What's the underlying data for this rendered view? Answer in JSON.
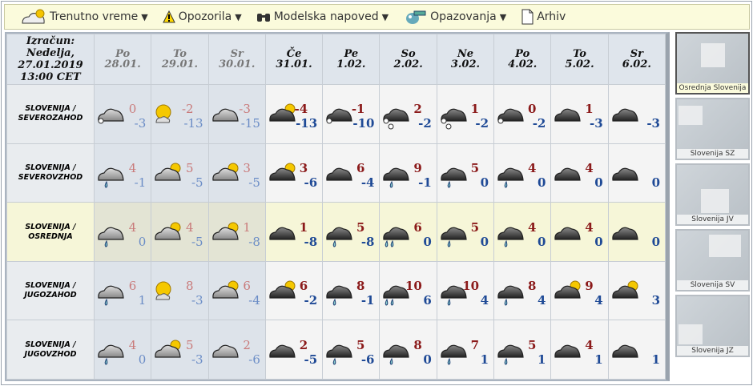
{
  "toolbar": [
    {
      "label": "Trenutno vreme",
      "icon": "cloud-sun-icon",
      "dropdown": true
    },
    {
      "label": "Opozorila",
      "icon": "warning-icon",
      "dropdown": true
    },
    {
      "label": "Modelska napoved",
      "icon": "binoculars-icon",
      "dropdown": true
    },
    {
      "label": "Opazovanja",
      "icon": "observer-icon",
      "dropdown": true
    },
    {
      "label": "Arhiv",
      "icon": "document-icon",
      "dropdown": false
    }
  ],
  "header": {
    "calc": [
      "Izračun:",
      "Nedelja,",
      "27.01.2019",
      "13:00 CET"
    ],
    "days": [
      {
        "day": "Po",
        "date": "28.01.",
        "past": true
      },
      {
        "day": "To",
        "date": "29.01.",
        "past": true
      },
      {
        "day": "Sr",
        "date": "30.01.",
        "past": true
      },
      {
        "day": "Če",
        "date": "31.01."
      },
      {
        "day": "Pe",
        "date": "1.02."
      },
      {
        "day": "So",
        "date": "2.02."
      },
      {
        "day": "Ne",
        "date": "3.02."
      },
      {
        "day": "Po",
        "date": "4.02."
      },
      {
        "day": "To",
        "date": "5.02."
      },
      {
        "day": "Sr",
        "date": "6.02."
      }
    ]
  },
  "rows": [
    {
      "region": [
        "SLOVENIJA /",
        "SEVEROZAHOD"
      ],
      "cells": [
        {
          "icon": "cloud-snow",
          "hi": "0",
          "lo": "-3"
        },
        {
          "icon": "sun-cloud",
          "hi": "-2",
          "lo": "-13"
        },
        {
          "icon": "cloud",
          "hi": "-3",
          "lo": "-15"
        },
        {
          "icon": "cloud-sun",
          "hi": "-4",
          "lo": "-13"
        },
        {
          "icon": "cloud-snow",
          "hi": "-1",
          "lo": "-10"
        },
        {
          "icon": "cloud-snow-heavy",
          "hi": "2",
          "lo": "-2"
        },
        {
          "icon": "cloud-snow-heavy",
          "hi": "1",
          "lo": "-2"
        },
        {
          "icon": "cloud-snow",
          "hi": "0",
          "lo": "-2"
        },
        {
          "icon": "cloud",
          "hi": "1",
          "lo": "-3"
        },
        {
          "icon": "cloud",
          "hi": "",
          "lo": "-3"
        }
      ]
    },
    {
      "region": [
        "SLOVENIJA /",
        "SEVEROVZHOD"
      ],
      "cells": [
        {
          "icon": "cloud-rain",
          "hi": "4",
          "lo": "-1"
        },
        {
          "icon": "cloud-sun",
          "hi": "5",
          "lo": "-5"
        },
        {
          "icon": "cloud-sun",
          "hi": "3",
          "lo": "-5"
        },
        {
          "icon": "cloud-sun",
          "hi": "3",
          "lo": "-6"
        },
        {
          "icon": "cloud",
          "hi": "6",
          "lo": "-4"
        },
        {
          "icon": "cloud-rain",
          "hi": "9",
          "lo": "-1"
        },
        {
          "icon": "cloud-rain",
          "hi": "5",
          "lo": "0"
        },
        {
          "icon": "cloud-rain",
          "hi": "4",
          "lo": "0"
        },
        {
          "icon": "cloud",
          "hi": "4",
          "lo": "0"
        },
        {
          "icon": "cloud",
          "hi": "",
          "lo": "0"
        }
      ]
    },
    {
      "region": [
        "SLOVENIJA /",
        "OSREDNJA"
      ],
      "highlight": true,
      "cells": [
        {
          "icon": "cloud-rain",
          "hi": "4",
          "lo": "0"
        },
        {
          "icon": "cloud-sun",
          "hi": "4",
          "lo": "-5"
        },
        {
          "icon": "cloud-sun",
          "hi": "1",
          "lo": "-8"
        },
        {
          "icon": "cloud",
          "hi": "1",
          "lo": "-8"
        },
        {
          "icon": "cloud-rain",
          "hi": "5",
          "lo": "-8"
        },
        {
          "icon": "cloud-rain-heavy",
          "hi": "6",
          "lo": "0"
        },
        {
          "icon": "cloud-rain",
          "hi": "5",
          "lo": "0"
        },
        {
          "icon": "cloud-rain",
          "hi": "4",
          "lo": "0"
        },
        {
          "icon": "cloud",
          "hi": "4",
          "lo": "0"
        },
        {
          "icon": "cloud",
          "hi": "",
          "lo": "0"
        }
      ]
    },
    {
      "region": [
        "SLOVENIJA /",
        "JUGOZAHOD"
      ],
      "cells": [
        {
          "icon": "cloud-rain",
          "hi": "6",
          "lo": "1"
        },
        {
          "icon": "sun-cloud",
          "hi": "8",
          "lo": "-3"
        },
        {
          "icon": "cloud-sun",
          "hi": "6",
          "lo": "-4"
        },
        {
          "icon": "cloud-sun",
          "hi": "6",
          "lo": "-2"
        },
        {
          "icon": "cloud-rain",
          "hi": "8",
          "lo": "-1"
        },
        {
          "icon": "cloud-rain-heavy",
          "hi": "10",
          "lo": "6"
        },
        {
          "icon": "cloud-rain",
          "hi": "10",
          "lo": "4"
        },
        {
          "icon": "cloud-rain",
          "hi": "8",
          "lo": "4"
        },
        {
          "icon": "cloud-sun",
          "hi": "9",
          "lo": "4"
        },
        {
          "icon": "cloud-sun",
          "hi": "",
          "lo": "3"
        }
      ]
    },
    {
      "region": [
        "SLOVENIJA /",
        "JUGOVZHOD"
      ],
      "cells": [
        {
          "icon": "cloud-rain",
          "hi": "4",
          "lo": "0"
        },
        {
          "icon": "cloud-sun",
          "hi": "5",
          "lo": "-3"
        },
        {
          "icon": "cloud",
          "hi": "2",
          "lo": "-6"
        },
        {
          "icon": "cloud",
          "hi": "2",
          "lo": "-5"
        },
        {
          "icon": "cloud-rain",
          "hi": "5",
          "lo": "-6"
        },
        {
          "icon": "cloud-rain",
          "hi": "8",
          "lo": "0"
        },
        {
          "icon": "cloud-rain",
          "hi": "7",
          "lo": "1"
        },
        {
          "icon": "cloud-rain",
          "hi": "5",
          "lo": "1"
        },
        {
          "icon": "cloud",
          "hi": "4",
          "lo": "1"
        },
        {
          "icon": "cloud",
          "hi": "",
          "lo": "1"
        }
      ]
    }
  ],
  "maps": [
    {
      "label": "Osrednja Slovenija",
      "selected": true
    },
    {
      "label": "Slovenija SZ"
    },
    {
      "label": "Slovenija JV"
    },
    {
      "label": "Slovenija SV"
    },
    {
      "label": "Slovenija JZ"
    }
  ]
}
